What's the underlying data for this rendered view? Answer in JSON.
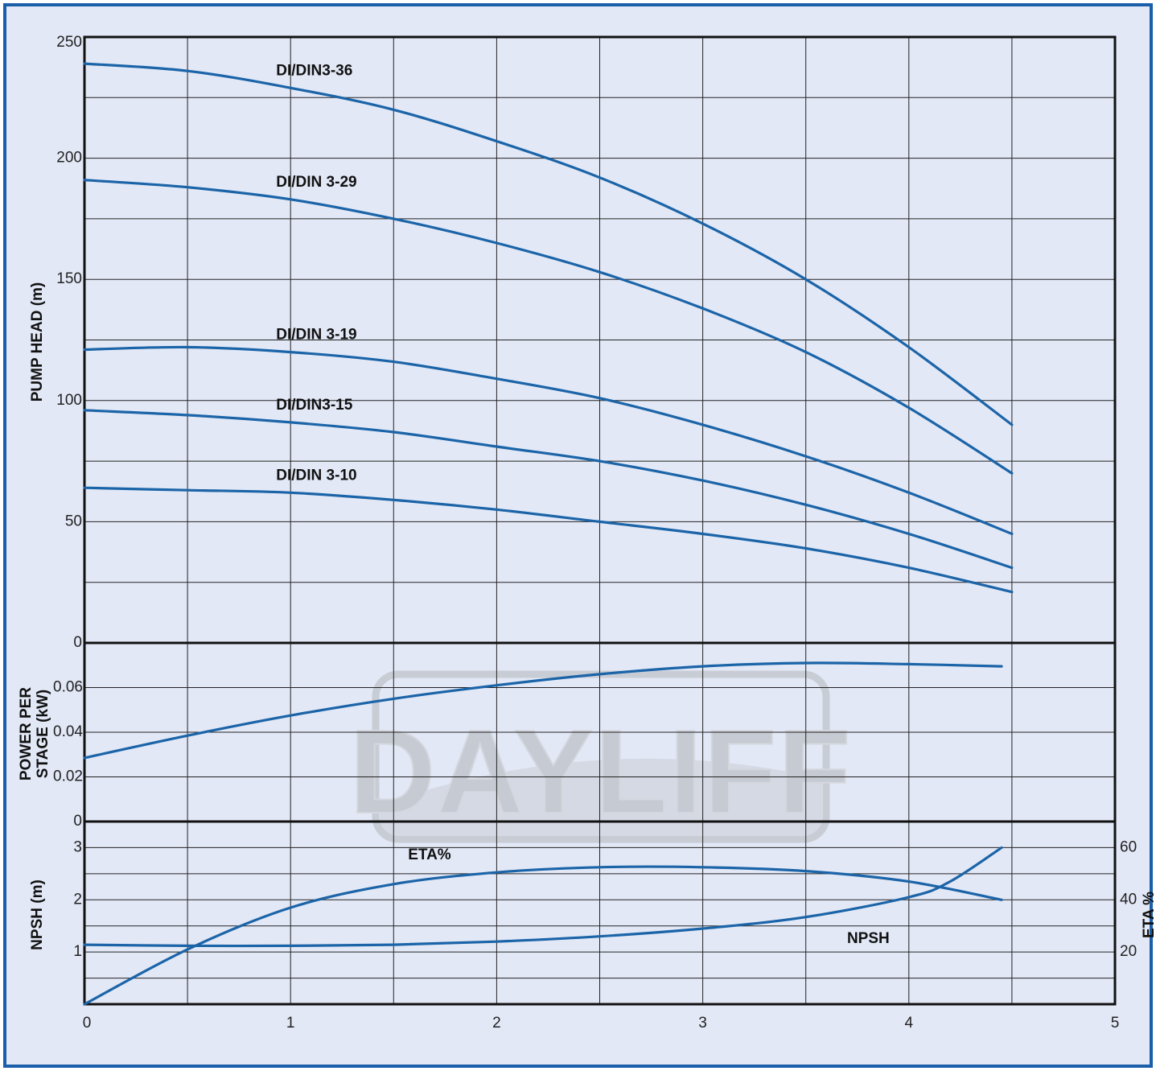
{
  "chart_data": [
    {
      "type": "line",
      "panel": "head",
      "ylabel": "PUMP HEAD (m)",
      "xlim": [
        0,
        5
      ],
      "ylim": [
        0,
        250
      ],
      "yticks": [
        0,
        50,
        100,
        150,
        200,
        250
      ],
      "series": [
        {
          "name": "DI/DIN3-36",
          "x": [
            0,
            0.5,
            1,
            1.5,
            2,
            2.5,
            3,
            3.5,
            4,
            4.5
          ],
          "y": [
            239,
            236,
            229,
            220,
            207,
            192,
            173,
            150,
            122,
            90
          ]
        },
        {
          "name": "DI/DIN 3-29",
          "x": [
            0,
            0.5,
            1,
            1.5,
            2,
            2.5,
            3,
            3.5,
            4,
            4.5
          ],
          "y": [
            191,
            188,
            183,
            175,
            165,
            153,
            138,
            120,
            97,
            70
          ]
        },
        {
          "name": "DI/DIN 3-19",
          "x": [
            0,
            0.5,
            1,
            1.5,
            2,
            2.5,
            3,
            3.5,
            4,
            4.5
          ],
          "y": [
            121,
            122,
            120,
            116,
            109,
            101,
            90,
            77,
            62,
            45
          ]
        },
        {
          "name": "DI/DIN3-15",
          "x": [
            0,
            0.5,
            1,
            1.5,
            2,
            2.5,
            3,
            3.5,
            4,
            4.5
          ],
          "y": [
            96,
            94,
            91,
            87,
            81,
            75,
            67,
            57,
            45,
            31
          ]
        },
        {
          "name": "DI/DIN 3-10",
          "x": [
            0,
            0.5,
            1,
            1.5,
            2,
            2.5,
            3,
            3.5,
            4,
            4.5
          ],
          "y": [
            64,
            63,
            62,
            59,
            55,
            50,
            45,
            39,
            31,
            21
          ]
        }
      ]
    },
    {
      "type": "line",
      "panel": "power",
      "ylabel": "POWER PER STAGE (kW)",
      "xlim": [
        0,
        5
      ],
      "ylim": [
        0,
        0.08
      ],
      "yticks": [
        0,
        0.02,
        0.04,
        0.06
      ],
      "series": [
        {
          "name": "",
          "x": [
            0,
            0.5,
            1,
            1.5,
            2,
            2.5,
            3,
            3.5,
            4,
            4.45
          ],
          "y": [
            0.0285,
            0.0385,
            0.0475,
            0.055,
            0.061,
            0.066,
            0.0695,
            0.071,
            0.0705,
            0.0695
          ]
        }
      ]
    },
    {
      "type": "line",
      "panel": "npsh-eta",
      "ylabel": "NPSH (m)",
      "ylabel_right": "ETA %",
      "xlabel": "",
      "xlim": [
        0,
        5
      ],
      "xticks": [
        0,
        1,
        2,
        3,
        4,
        5
      ],
      "ylim": [
        0,
        3.5
      ],
      "yticks": [
        1,
        2,
        3
      ],
      "ylim_right": [
        0,
        70
      ],
      "yticks_right": [
        20,
        40,
        60
      ],
      "series": [
        {
          "name": "NPSH",
          "axis": "left",
          "x": [
            0,
            0.5,
            1,
            1.5,
            2,
            2.5,
            3,
            3.5,
            4,
            4.2,
            4.45
          ],
          "y": [
            1.14,
            1.12,
            1.12,
            1.14,
            1.2,
            1.3,
            1.45,
            1.67,
            2.05,
            2.35,
            3.0
          ]
        },
        {
          "name": "ETA%",
          "axis": "right",
          "x": [
            0,
            0.5,
            1,
            1.5,
            2,
            2.5,
            3,
            3.5,
            4,
            4.45
          ],
          "y": [
            0,
            21,
            37,
            46,
            50.5,
            52.5,
            52.5,
            51,
            47,
            40
          ]
        }
      ]
    }
  ],
  "watermark": "DAYLIFF",
  "colors": {
    "background": "#e2e8f6",
    "border": "#1b5eaa",
    "curve": "#1b64a8",
    "grid": "#222222"
  }
}
